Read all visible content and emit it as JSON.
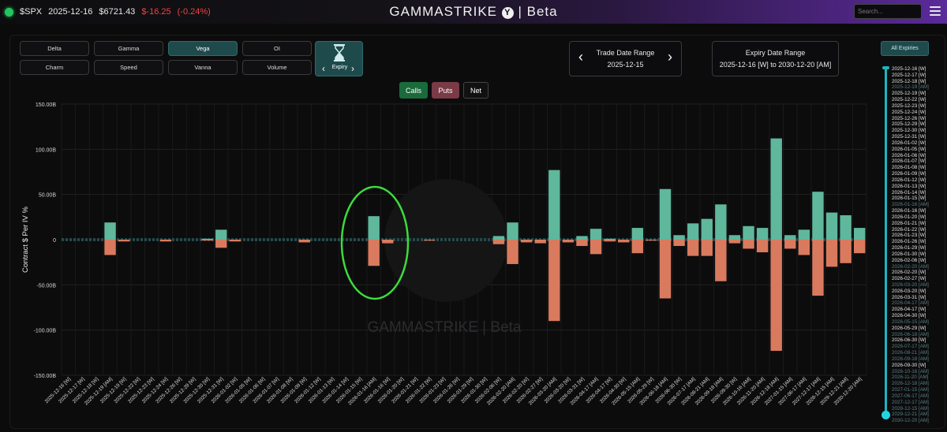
{
  "header": {
    "ticker": "$SPX",
    "date": "2025-12-16",
    "price": "$6721.43",
    "change": "$-16.25",
    "change_pct": "(-0.24%)",
    "brand": "GAMMASTRIKE",
    "brand_suffix": "| Beta",
    "brand_logo_letter": "Y",
    "search_placeholder": "Search...",
    "change_color": "#ef4444"
  },
  "greeks": [
    "Delta",
    "Gamma",
    "Vega",
    "OI",
    "Charm",
    "Speed",
    "Vanna",
    "Volume"
  ],
  "active_greek": "Vega",
  "expiry_button": {
    "label": "Expiry"
  },
  "trade_date_range": {
    "title": "Trade Date Range",
    "value": "2025-12-15"
  },
  "expiry_date_range": {
    "title": "Expiry Date Range",
    "value": "2025-12-16 [W] to 2030-12-20 [AM]"
  },
  "toggles": {
    "calls": "Calls",
    "puts": "Puts",
    "net": "Net"
  },
  "all_expiries_label": "All Expiries",
  "watermark": "GAMMASTRIKE | Beta",
  "expiry_list": [
    {
      "t": "2025-12-16 [W]",
      "dim": false
    },
    {
      "t": "2025-12-17 [W]",
      "dim": false
    },
    {
      "t": "2025-12-18 [W]",
      "dim": false
    },
    {
      "t": "2025-12-19 [AM]",
      "dim": true
    },
    {
      "t": "2025-12-19 [W]",
      "dim": false
    },
    {
      "t": "2025-12-22 [W]",
      "dim": false
    },
    {
      "t": "2025-12-23 [W]",
      "dim": false
    },
    {
      "t": "2025-12-24 [W]",
      "dim": false
    },
    {
      "t": "2025-12-26 [W]",
      "dim": false
    },
    {
      "t": "2025-12-29 [W]",
      "dim": false
    },
    {
      "t": "2025-12-30 [W]",
      "dim": false
    },
    {
      "t": "2025-12-31 [W]",
      "dim": false
    },
    {
      "t": "2026-01-02 [W]",
      "dim": false
    },
    {
      "t": "2026-01-05 [W]",
      "dim": false
    },
    {
      "t": "2026-01-06 [W]",
      "dim": false
    },
    {
      "t": "2026-01-07 [W]",
      "dim": false
    },
    {
      "t": "2026-01-08 [W]",
      "dim": false
    },
    {
      "t": "2026-01-09 [W]",
      "dim": false
    },
    {
      "t": "2026-01-12 [W]",
      "dim": false
    },
    {
      "t": "2026-01-13 [W]",
      "dim": false
    },
    {
      "t": "2026-01-14 [W]",
      "dim": false
    },
    {
      "t": "2026-01-15 [W]",
      "dim": false
    },
    {
      "t": "2026-01-16 [AM]",
      "dim": true
    },
    {
      "t": "2026-01-16 [W]",
      "dim": false
    },
    {
      "t": "2026-01-20 [W]",
      "dim": false
    },
    {
      "t": "2026-01-21 [W]",
      "dim": false
    },
    {
      "t": "2026-01-22 [W]",
      "dim": false
    },
    {
      "t": "2026-01-23 [W]",
      "dim": false
    },
    {
      "t": "2026-01-26 [W]",
      "dim": false
    },
    {
      "t": "2026-01-29 [W]",
      "dim": false
    },
    {
      "t": "2026-01-30 [W]",
      "dim": false
    },
    {
      "t": "2026-02-06 [W]",
      "dim": false
    },
    {
      "t": "2026-02-20 [AM]",
      "dim": true
    },
    {
      "t": "2026-02-20 [W]",
      "dim": false
    },
    {
      "t": "2026-02-27 [W]",
      "dim": false
    },
    {
      "t": "2026-03-20 [AM]",
      "dim": true
    },
    {
      "t": "2026-03-20 [W]",
      "dim": false
    },
    {
      "t": "2026-03-31 [W]",
      "dim": false
    },
    {
      "t": "2026-04-17 [AM]",
      "dim": true
    },
    {
      "t": "2026-04-17 [W]",
      "dim": false
    },
    {
      "t": "2026-04-30 [W]",
      "dim": false
    },
    {
      "t": "2026-05-15 [AM]",
      "dim": true
    },
    {
      "t": "2026-05-29 [W]",
      "dim": false
    },
    {
      "t": "2026-06-18 [AM]",
      "dim": true
    },
    {
      "t": "2026-06-30 [W]",
      "dim": false
    },
    {
      "t": "2026-07-17 [AM]",
      "dim": true
    },
    {
      "t": "2026-08-21 [AM]",
      "dim": true
    },
    {
      "t": "2026-09-18 [AM]",
      "dim": true
    },
    {
      "t": "2026-09-30 [W]",
      "dim": false
    },
    {
      "t": "2026-10-16 [AM]",
      "dim": true
    },
    {
      "t": "2026-11-20 [AM]",
      "dim": true
    },
    {
      "t": "2026-12-18 [AM]",
      "dim": true
    },
    {
      "t": "2027-01-15 [AM]",
      "dim": true
    },
    {
      "t": "2027-06-17 [AM]",
      "dim": true
    },
    {
      "t": "2027-12-17 [AM]",
      "dim": true
    },
    {
      "t": "2028-12-15 [AM]",
      "dim": true
    },
    {
      "t": "2029-12-21 [AM]",
      "dim": true
    },
    {
      "t": "2030-12-20 [AM]",
      "dim": true
    }
  ],
  "chart_data": {
    "type": "bar",
    "ylabel": "Contract $ Per IV %",
    "ylim": [
      -150,
      150
    ],
    "yticks": [
      "150.00B",
      "100.00B",
      "50.00B",
      "0",
      "-50.00B",
      "-100.00B",
      "-150.00B"
    ],
    "ytick_values": [
      150,
      100,
      50,
      0,
      -50,
      -100,
      -150
    ],
    "grid": true,
    "colors": {
      "calls": "#5fb79c",
      "puts": "#d97a5e"
    },
    "categories": [
      "2025-12-16 [W]",
      "2025-12-17 [W]",
      "2025-12-18 [W]",
      "2025-12-19 [AM]",
      "2025-12-19 [W]",
      "2025-12-22 [W]",
      "2025-12-23 [W]",
      "2025-12-24 [W]",
      "2025-12-26 [W]",
      "2025-12-29 [W]",
      "2025-12-30 [W]",
      "2025-12-31 [W]",
      "2026-01-02 [W]",
      "2026-01-05 [W]",
      "2026-01-06 [W]",
      "2026-01-07 [W]",
      "2026-01-08 [W]",
      "2026-01-09 [W]",
      "2026-01-12 [W]",
      "2026-01-13 [W]",
      "2026-01-14 [W]",
      "2026-01-15 [W]",
      "2026-01-16 [AM]",
      "2026-01-16 [W]",
      "2026-01-20 [W]",
      "2026-01-21 [W]",
      "2026-01-22 [W]",
      "2026-01-23 [W]",
      "2026-01-26 [W]",
      "2026-01-29 [W]",
      "2026-01-30 [W]",
      "2026-02-06 [W]",
      "2026-02-20 [AM]",
      "2026-02-20 [W]",
      "2026-02-27 [W]",
      "2026-03-20 [AM]",
      "2026-03-20 [W]",
      "2026-03-31 [W]",
      "2026-04-17 [AM]",
      "2026-04-17 [W]",
      "2026-04-30 [W]",
      "2026-05-15 [AM]",
      "2026-05-29 [W]",
      "2026-06-18 [AM]",
      "2026-06-30 [W]",
      "2026-07-17 [AM]",
      "2026-08-21 [AM]",
      "2026-09-18 [AM]",
      "2026-09-30 [W]",
      "2026-10-16 [AM]",
      "2026-11-20 [AM]",
      "2026-12-18 [AM]",
      "2027-01-15 [AM]",
      "2027-06-17 [AM]",
      "2027-12-17 [AM]",
      "2028-12-15 [AM]",
      "2029-12-21 [AM]",
      "2030-12-20 [AM]"
    ],
    "series": [
      {
        "name": "Calls",
        "values": [
          0,
          0,
          0,
          19,
          0,
          0,
          0,
          0,
          0,
          0,
          1,
          11,
          0,
          0,
          0,
          0,
          0,
          0,
          0,
          0,
          0,
          0,
          26,
          0,
          0,
          0,
          0,
          0,
          0,
          0,
          0,
          4,
          19,
          0,
          0,
          77,
          0,
          4,
          12,
          1,
          0,
          13,
          0,
          56,
          5,
          18,
          23,
          39,
          5,
          15,
          13,
          112,
          5,
          11,
          53,
          30,
          27,
          13
        ]
      },
      {
        "name": "Puts",
        "values": [
          0,
          0,
          0,
          -17,
          -2,
          0,
          0,
          -2,
          0,
          0,
          -1,
          -9,
          -2,
          0,
          0,
          0,
          0,
          -3,
          0,
          0,
          0,
          0,
          -29,
          -4,
          0,
          0,
          -1,
          0,
          0,
          0,
          0,
          -5,
          -27,
          -3,
          -4,
          -90,
          -3,
          -7,
          -16,
          -2,
          -3,
          -15,
          -1,
          -65,
          -7,
          -18,
          -18,
          -46,
          -4,
          -10,
          -14,
          -123,
          -10,
          -17,
          -62,
          -30,
          -26,
          -15
        ]
      }
    ]
  }
}
